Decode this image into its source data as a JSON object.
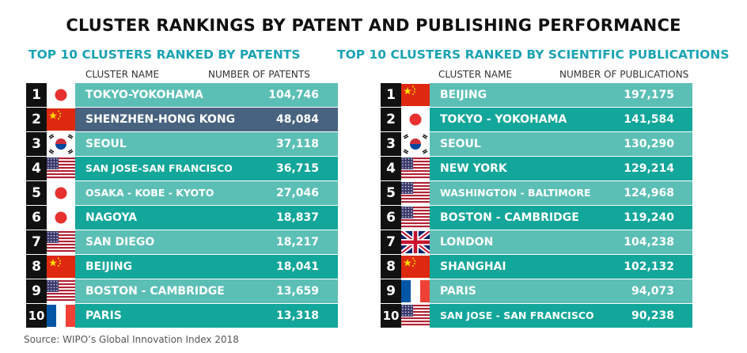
{
  "title": "CLUSTER RANKINGS BY PATENT AND PUBLISHING PERFORMANCE",
  "left": {
    "title": "TOP 10 CLUSTERS RANKED BY PATENTS",
    "col_name": "CLUSTER NAME",
    "col_value": "NUMBER OF PATENTS",
    "rows": [
      {
        "rank": "1",
        "flag": "japan",
        "name": "TOKYO-YOKOHAMA",
        "value": "104,746",
        "highlight": false
      },
      {
        "rank": "2",
        "flag": "china",
        "name": "SHENZHEN-HONG KONG",
        "value": "48,084",
        "highlight": true
      },
      {
        "rank": "3",
        "flag": "korea",
        "name": "SEOUL",
        "value": "37,118",
        "highlight": false
      },
      {
        "rank": "4",
        "flag": "usa",
        "name": "SAN JOSE-SAN FRANCISCO",
        "value": "36,715",
        "highlight": false
      },
      {
        "rank": "5",
        "flag": "japan",
        "name": "OSAKA - KOBE - KYOTO",
        "value": "27,046",
        "highlight": false
      },
      {
        "rank": "6",
        "flag": "japan",
        "name": "NAGOYA",
        "value": "18,837",
        "highlight": false
      },
      {
        "rank": "7",
        "flag": "usa",
        "name": "SAN DIEGO",
        "value": "18,217",
        "highlight": false
      },
      {
        "rank": "8",
        "flag": "china",
        "name": "BEIJING",
        "value": "18,041",
        "highlight": false
      },
      {
        "rank": "9",
        "flag": "usa",
        "name": "BOSTON - CAMBRIDGE",
        "value": "13,659",
        "highlight": false
      },
      {
        "rank": "10",
        "flag": "france",
        "name": "PARIS",
        "value": "13,318",
        "highlight": false
      }
    ]
  },
  "right": {
    "title": "TOP 10 CLUSTERS RANKED BY SCIENTIFIC PUBLICATIONS",
    "col_name": "CLUSTER NAME",
    "col_value": "NUMBER OF PUBLICATIONS",
    "rows": [
      {
        "rank": "1",
        "flag": "china",
        "name": "BEIJING",
        "value": "197,175",
        "highlight": false
      },
      {
        "rank": "2",
        "flag": "japan",
        "name": "TOKYO - YOKOHAMA",
        "value": "141,584",
        "highlight": false
      },
      {
        "rank": "3",
        "flag": "korea",
        "name": "SEOUL",
        "value": "130,290",
        "highlight": false
      },
      {
        "rank": "4",
        "flag": "usa",
        "name": "NEW YORK",
        "value": "129,214",
        "highlight": false
      },
      {
        "rank": "5",
        "flag": "usa",
        "name": "WASHINGTON - BALTIMORE",
        "value": "124,968",
        "highlight": false
      },
      {
        "rank": "6",
        "flag": "usa",
        "name": "BOSTON - CAMBRIDGE",
        "value": "119,240",
        "highlight": false
      },
      {
        "rank": "7",
        "flag": "uk",
        "name": "LONDON",
        "value": "104,238",
        "highlight": false
      },
      {
        "rank": "8",
        "flag": "china",
        "name": "SHANGHAI",
        "value": "102,132",
        "highlight": false
      },
      {
        "rank": "9",
        "flag": "france",
        "name": "PARIS",
        "value": "94,073",
        "highlight": false
      },
      {
        "rank": "10",
        "flag": "usa",
        "name": "SAN JOSE - SAN FRANCISCO",
        "value": "90,238",
        "highlight": false
      }
    ]
  },
  "source": "Source: WIPO’s Global Innovation Index 2018",
  "colors": {
    "light_row": "#5bbfb5",
    "dark_row": "#13a69a",
    "highlight_row": "#48637f",
    "title_accent": "#1aa3b4"
  }
}
